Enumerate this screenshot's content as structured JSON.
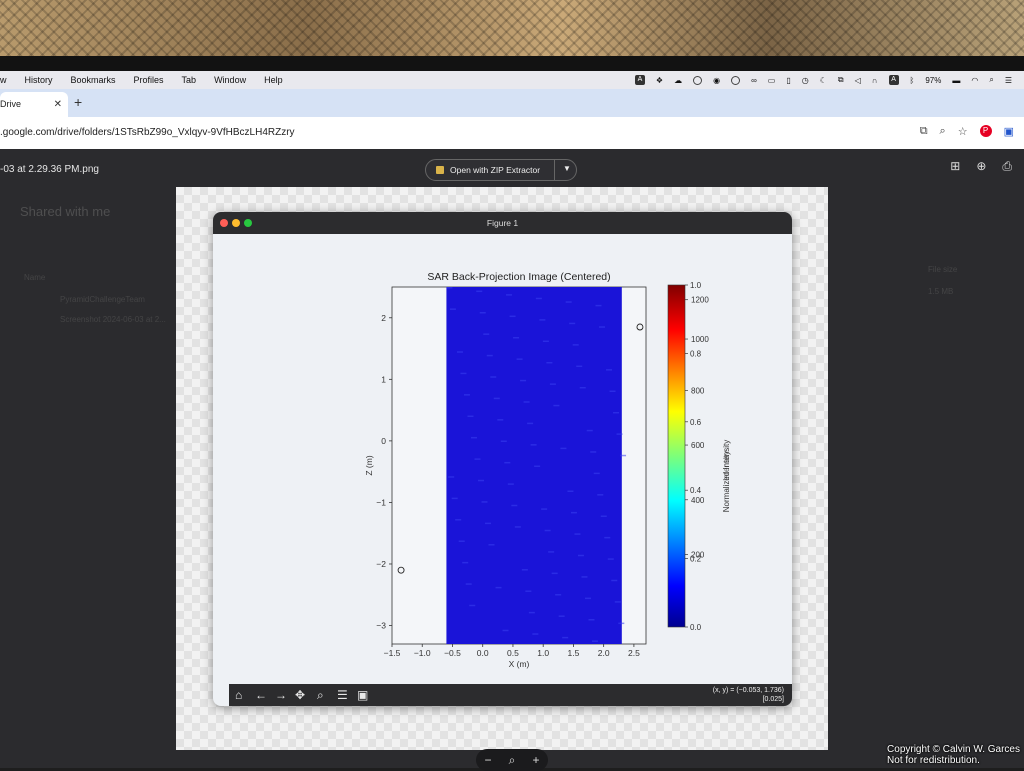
{
  "menubar": {
    "items": [
      "w",
      "History",
      "Bookmarks",
      "Profiles",
      "Tab",
      "Window",
      "Help"
    ],
    "battery": "97%"
  },
  "browser": {
    "tab_title": "Drive",
    "url": ".google.com/drive/folders/1STsRbZ99o_Vxlqyv-9VfHBczLH4RZzry"
  },
  "viewer": {
    "filename": "-03 at 2.29.36 PM.png",
    "open_with_label": "Open with ZIP Extractor",
    "background_breadcrumb": "Shared with me",
    "background_col_name": "Name",
    "background_col_size": "File size",
    "background_file_1": "PyramidChallengeTeam",
    "background_file_2": "Screenshot 2024-06-03 at 2...",
    "background_size_1": "1.5 MB"
  },
  "figure": {
    "window_title": "Figure 1",
    "coords_line1": "(x, y) = (−0.053, 1.736)",
    "coords_line2": "[0.025]"
  },
  "chart_data": {
    "type": "heatmap",
    "title": "SAR Back-Projection Image (Centered)",
    "xlabel": "X (m)",
    "ylabel": "Z (m)",
    "xlim": [
      -1.5,
      2.7
    ],
    "ylim": [
      -3.3,
      2.5
    ],
    "x_ticks": [
      "−1.5",
      "−1.0",
      "−0.5",
      "0.0",
      "0.5",
      "1.0",
      "1.5",
      "2.0",
      "2.5"
    ],
    "y_ticks": [
      "−3",
      "−2",
      "−1",
      "0",
      "1",
      "2"
    ],
    "image_extent_x": [
      -0.6,
      2.3
    ],
    "colormap": "jet",
    "background_color": "#1a14d8",
    "markers": [
      {
        "x": 2.6,
        "z": 1.85
      },
      {
        "x": -1.35,
        "z": -2.1
      }
    ],
    "colorbar": {
      "label_overlap_1": "Normalized Intensity",
      "label_overlap_2": "Intensity",
      "ticks_left": [
        "0.0",
        "0.2",
        "0.4",
        "0.6",
        "0.8",
        "1.0"
      ],
      "ticks_right": [
        "200",
        "400",
        "600",
        "800",
        "1000",
        "1200"
      ]
    }
  },
  "watermark": {
    "line1": "Copyright © Calvin W. Garces",
    "line2": "Not for redistribution."
  }
}
